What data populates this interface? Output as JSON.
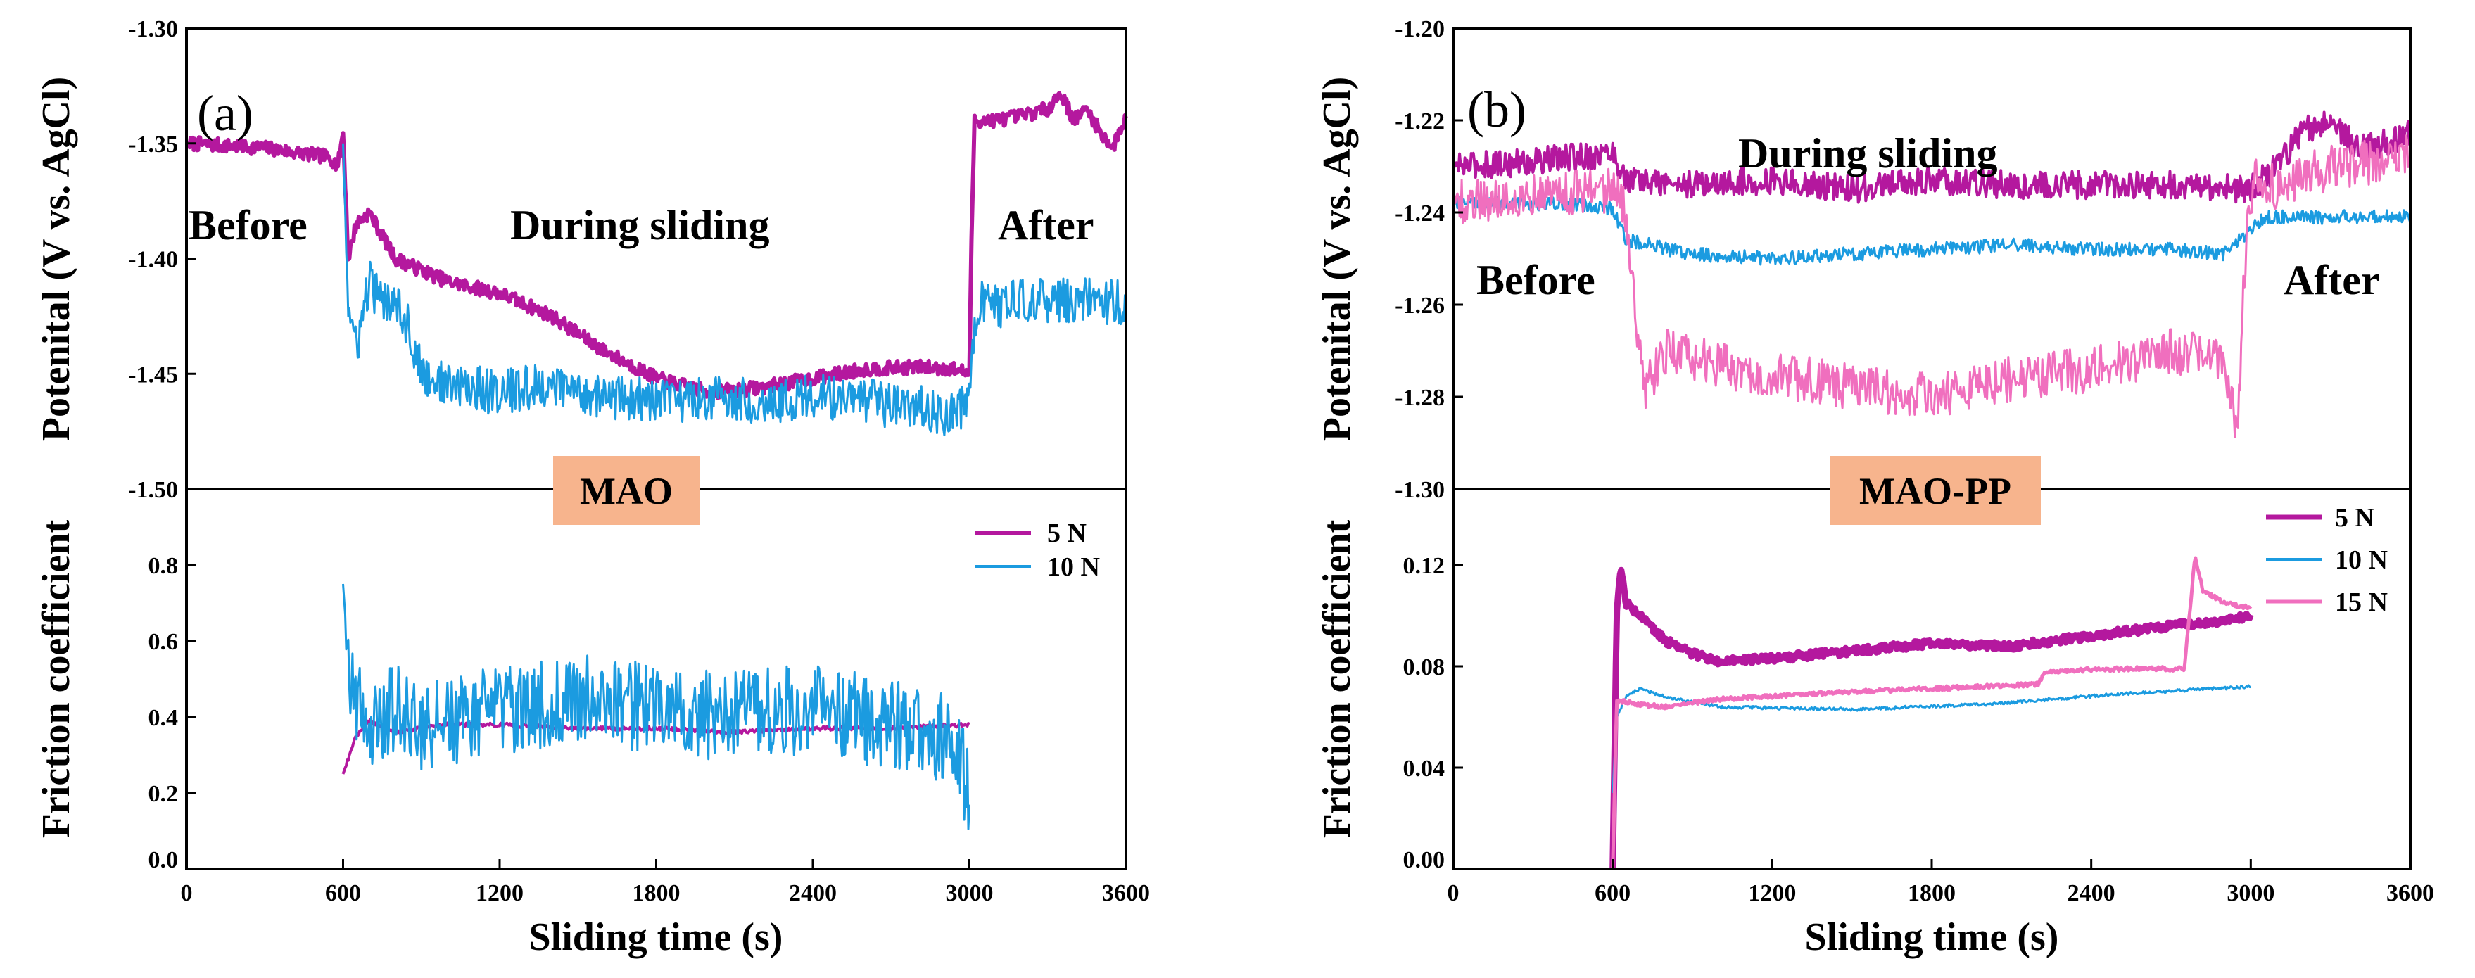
{
  "chart_data": [
    {
      "type": "line",
      "panel_label": "(a)",
      "badge": "MAO",
      "colors": {
        "5 N": "#b4189e",
        "10 N": "#1b9be0"
      },
      "legend": [
        "5 N",
        "10 N"
      ],
      "annotations": {
        "before": "Before",
        "during": "During sliding",
        "after": "After"
      },
      "xlabel": "Sliding time (s)",
      "xlim": [
        0,
        3600
      ],
      "xticks": [
        0,
        600,
        1200,
        1800,
        2400,
        3000,
        3600
      ],
      "xtick_labels": [
        "0",
        "600",
        "1200",
        "1800",
        "2400",
        "3000",
        "3600"
      ],
      "top": {
        "ylabel": "Potenital (V vs. AgCl)",
        "ylim": [
          -1.5,
          -1.3
        ],
        "yticks": [
          -1.3,
          -1.35,
          -1.4,
          -1.45,
          -1.5
        ],
        "ytick_labels": [
          "-1.30",
          "-1.35",
          "-1.40",
          "-1.45",
          "-1.50"
        ],
        "series": [
          {
            "name": "5 N",
            "noise": 0.003,
            "x": [
              0,
              300,
              550,
              580,
              600,
              620,
              650,
              700,
              750,
              800,
              900,
              1000,
              1200,
              1400,
              1600,
              1800,
              2000,
              2200,
              2400,
              2600,
              2800,
              2950,
              3000,
              3010,
              3020,
              3100,
              3200,
              3300,
              3350,
              3400,
              3450,
              3500,
              3550,
              3600
            ],
            "y": [
              -1.35,
              -1.352,
              -1.356,
              -1.36,
              -1.345,
              -1.4,
              -1.385,
              -1.38,
              -1.39,
              -1.4,
              -1.405,
              -1.41,
              -1.415,
              -1.425,
              -1.44,
              -1.452,
              -1.458,
              -1.456,
              -1.452,
              -1.448,
              -1.447,
              -1.448,
              -1.45,
              -1.38,
              -1.34,
              -1.34,
              -1.338,
              -1.335,
              -1.328,
              -1.34,
              -1.335,
              -1.345,
              -1.352,
              -1.338
            ]
          },
          {
            "name": "10 N",
            "noise": 0.01,
            "x": [
              600,
              620,
              650,
              700,
              750,
              800,
              850,
              900,
              1000,
              1200,
              1400,
              1600,
              1800,
              2000,
              2200,
              2400,
              2600,
              2800,
              2950,
              3000,
              3020,
              3040,
              3100,
              3300,
              3500,
              3600
            ],
            "y": [
              -1.35,
              -1.42,
              -1.44,
              -1.41,
              -1.42,
              -1.415,
              -1.43,
              -1.45,
              -1.455,
              -1.458,
              -1.455,
              -1.46,
              -1.462,
              -1.46,
              -1.462,
              -1.46,
              -1.462,
              -1.465,
              -1.468,
              -1.46,
              -1.425,
              -1.42,
              -1.42,
              -1.418,
              -1.418,
              -1.42
            ]
          }
        ]
      },
      "bottom": {
        "ylabel": "Friction coefficient",
        "ylim": [
          0,
          1.0
        ],
        "yticks": [
          0.0,
          0.2,
          0.4,
          0.6,
          0.8
        ],
        "ytick_labels": [
          "0.0",
          "0.2",
          "0.4",
          "0.6",
          "0.8"
        ],
        "series": [
          {
            "name": "5 N",
            "noise": 0.005,
            "x": [
              600,
              650,
              700,
              800,
              1000,
              1200,
              1500,
              1800,
              2100,
              2400,
              2700,
              3000
            ],
            "y": [
              0.25,
              0.35,
              0.39,
              0.36,
              0.38,
              0.38,
              0.37,
              0.37,
              0.36,
              0.37,
              0.37,
              0.38
            ]
          },
          {
            "name": "10 N",
            "noise": 0.12,
            "x": [
              600,
              620,
              650,
              700,
              800,
              900,
              1200,
              1500,
              1800,
              2100,
              2400,
              2700,
              2900,
              3000
            ],
            "y": [
              0.75,
              0.55,
              0.45,
              0.38,
              0.42,
              0.38,
              0.42,
              0.45,
              0.42,
              0.4,
              0.42,
              0.38,
              0.35,
              0.22
            ]
          }
        ]
      }
    },
    {
      "type": "line",
      "panel_label": "(b)",
      "badge": "MAO-PP",
      "colors": {
        "5 N": "#b4189e",
        "10 N": "#1b9be0",
        "15 N": "#f06fbe"
      },
      "legend": [
        "5 N",
        "10 N",
        "15 N"
      ],
      "annotations": {
        "before": "Before",
        "during": "During sliding",
        "after": "After"
      },
      "xlabel": "Sliding time (s)",
      "xlim": [
        0,
        3600
      ],
      "xticks": [
        0,
        600,
        1200,
        1800,
        2400,
        3000,
        3600
      ],
      "xtick_labels": [
        "0",
        "600",
        "1200",
        "1800",
        "2400",
        "3000",
        "3600"
      ],
      "top": {
        "ylabel": "Potenital (V vs. AgCl)",
        "ylim": [
          -1.3,
          -1.2
        ],
        "yticks": [
          -1.2,
          -1.22,
          -1.24,
          -1.26,
          -1.28,
          -1.3
        ],
        "ytick_labels": [
          "-1.20",
          "-1.22",
          "-1.24",
          "-1.26",
          "-1.28",
          "-1.30"
        ],
        "series": [
          {
            "name": "5 N",
            "noise": 0.003,
            "x": [
              0,
              300,
              600,
              650,
              900,
              1200,
              1500,
              1800,
              2100,
              2400,
              2700,
              3000,
              3100,
              3200,
              3300,
              3400,
              3500,
              3600
            ],
            "y": [
              -1.23,
              -1.229,
              -1.227,
              -1.233,
              -1.234,
              -1.233,
              -1.235,
              -1.233,
              -1.234,
              -1.234,
              -1.234,
              -1.235,
              -1.23,
              -1.222,
              -1.22,
              -1.226,
              -1.225,
              -1.223
            ]
          },
          {
            "name": "10 N",
            "noise": 0.0015,
            "x": [
              0,
              300,
              600,
              650,
              900,
              1200,
              1500,
              1800,
              2100,
              2400,
              2700,
              2900,
              3000,
              3050,
              3100,
              3300,
              3600
            ],
            "y": [
              -1.238,
              -1.238,
              -1.239,
              -1.246,
              -1.249,
              -1.25,
              -1.249,
              -1.248,
              -1.247,
              -1.248,
              -1.248,
              -1.249,
              -1.244,
              -1.241,
              -1.241,
              -1.241,
              -1.241
            ]
          },
          {
            "name": "15 N",
            "noise": 0.005,
            "x": [
              0,
              300,
              600,
              650,
              700,
              720,
              750,
              800,
              900,
              1200,
              1500,
              1800,
              2100,
              2400,
              2700,
              2900,
              2950,
              2970,
              2990,
              3000,
              3020,
              3100,
              3300,
              3600
            ],
            "y": [
              -1.238,
              -1.236,
              -1.235,
              -1.24,
              -1.27,
              -1.278,
              -1.276,
              -1.27,
              -1.272,
              -1.275,
              -1.278,
              -1.28,
              -1.276,
              -1.274,
              -1.27,
              -1.272,
              -1.288,
              -1.26,
              -1.238,
              -1.236,
              -1.232,
              -1.235,
              -1.23,
              -1.228
            ]
          }
        ]
      },
      "bottom": {
        "ylabel": "Friction coefficient",
        "ylim": [
          0,
          0.15
        ],
        "yticks": [
          0.0,
          0.04,
          0.08,
          0.12
        ],
        "ytick_labels": [
          "0.00",
          "0.04",
          "0.08",
          "0.12"
        ],
        "series": [
          {
            "name": "5 N",
            "noise": 0.0015,
            "x": [
              600,
              615,
              630,
              650,
              700,
              800,
              900,
              1000,
              1200,
              1500,
              1800,
              2100,
              2400,
              2700,
              2900,
              3000
            ],
            "y": [
              0.0,
              0.1,
              0.12,
              0.105,
              0.1,
              0.09,
              0.085,
              0.082,
              0.083,
              0.086,
              0.089,
              0.088,
              0.092,
              0.096,
              0.098,
              0.1
            ]
          },
          {
            "name": "10 N",
            "noise": 0.0006,
            "x": [
              600,
              615,
              650,
              700,
              800,
              1000,
              1500,
              2000,
              2500,
              3000
            ],
            "y": [
              0.03,
              0.06,
              0.068,
              0.071,
              0.068,
              0.064,
              0.063,
              0.065,
              0.069,
              0.072
            ]
          },
          {
            "name": "15 N",
            "noise": 0.0008,
            "x": [
              600,
              615,
              650,
              700,
              800,
              1000,
              1500,
              2000,
              2200,
              2230,
              2500,
              2750,
              2790,
              2820,
              2900,
              3000
            ],
            "y": [
              0.0,
              0.066,
              0.066,
              0.065,
              0.064,
              0.067,
              0.07,
              0.072,
              0.073,
              0.078,
              0.079,
              0.079,
              0.123,
              0.11,
              0.105,
              0.103
            ]
          }
        ]
      }
    }
  ]
}
